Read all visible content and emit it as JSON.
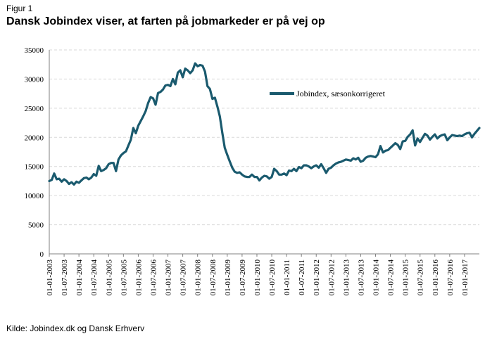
{
  "figure_label": "Figur 1",
  "title": "Dansk Jobindex viser, at farten på jobmarkeder er på vej op",
  "source": "Kilde: Jobindex.dk og Dansk Erhverv",
  "colors": {
    "line": "#1a5a6e",
    "grid": "#d9d9d9",
    "axis": "#808080"
  },
  "chart_data": {
    "type": "line",
    "title": "Dansk Jobindex viser, at farten på jobmarkeder er på vej op",
    "xlabel": "",
    "ylabel": "",
    "ylim": [
      0,
      35000
    ],
    "y_ticks": [
      0,
      5000,
      10000,
      15000,
      20000,
      25000,
      30000,
      35000
    ],
    "y_tick_labels": [
      "0",
      "5000",
      "10000",
      "15000",
      "20000",
      "25000",
      "30000",
      "35000"
    ],
    "x_tick_labels": [
      "01-01-2003",
      "01-07-2003",
      "01-01-2004",
      "01-07-2004",
      "01-01-2005",
      "01-07-2005",
      "01-01-2006",
      "01-07-2006",
      "01-01-2007",
      "01-07-2007",
      "01-01-2008",
      "01-07-2008",
      "01-01-2009",
      "01-07-2009",
      "01-01-2010",
      "01-07-2010",
      "01-01-2011",
      "01-07-2011",
      "01-01-2012",
      "01-07-2012",
      "01-01-2013",
      "01-07-2013",
      "01-01-2014",
      "01-07-2014",
      "01-01-2015",
      "01-07-2015",
      "01-01-2016",
      "01-07-2016",
      "01-01-2017"
    ],
    "grid": "horizontal",
    "legend_position": "top-right",
    "series": [
      {
        "name": "Jobindex, sæsonkorrigeret",
        "points": [
          [
            "2003-01",
            12500
          ],
          [
            "2003-02",
            12700
          ],
          [
            "2003-03",
            13800
          ],
          [
            "2003-04",
            12800
          ],
          [
            "2003-05",
            12900
          ],
          [
            "2003-06",
            12400
          ],
          [
            "2003-07",
            12800
          ],
          [
            "2003-08",
            12500
          ],
          [
            "2003-09",
            12000
          ],
          [
            "2003-10",
            12300
          ],
          [
            "2003-11",
            11900
          ],
          [
            "2003-12",
            12400
          ],
          [
            "2004-01",
            12200
          ],
          [
            "2004-02",
            12600
          ],
          [
            "2004-03",
            13000
          ],
          [
            "2004-04",
            13100
          ],
          [
            "2004-05",
            12800
          ],
          [
            "2004-06",
            13100
          ],
          [
            "2004-07",
            13700
          ],
          [
            "2004-08",
            13400
          ],
          [
            "2004-09",
            15100
          ],
          [
            "2004-10",
            14200
          ],
          [
            "2004-11",
            14400
          ],
          [
            "2004-12",
            14700
          ],
          [
            "2005-01",
            15400
          ],
          [
            "2005-02",
            15600
          ],
          [
            "2005-03",
            15600
          ],
          [
            "2005-04",
            14200
          ],
          [
            "2005-05",
            16200
          ],
          [
            "2005-06",
            16900
          ],
          [
            "2005-07",
            17300
          ],
          [
            "2005-08",
            17600
          ],
          [
            "2005-09",
            18600
          ],
          [
            "2005-10",
            19600
          ],
          [
            "2005-11",
            21600
          ],
          [
            "2005-12",
            20700
          ],
          [
            "2006-01",
            22000
          ],
          [
            "2006-02",
            22800
          ],
          [
            "2006-03",
            23600
          ],
          [
            "2006-04",
            24500
          ],
          [
            "2006-05",
            25900
          ],
          [
            "2006-06",
            26900
          ],
          [
            "2006-07",
            26700
          ],
          [
            "2006-08",
            25600
          ],
          [
            "2006-09",
            27600
          ],
          [
            "2006-10",
            27800
          ],
          [
            "2006-11",
            28200
          ],
          [
            "2006-12",
            28900
          ],
          [
            "2007-01",
            29000
          ],
          [
            "2007-02",
            28800
          ],
          [
            "2007-03",
            30000
          ],
          [
            "2007-04",
            29100
          ],
          [
            "2007-05",
            31100
          ],
          [
            "2007-06",
            31500
          ],
          [
            "2007-07",
            30300
          ],
          [
            "2007-08",
            31800
          ],
          [
            "2007-09",
            31500
          ],
          [
            "2007-10",
            31000
          ],
          [
            "2007-11",
            31500
          ],
          [
            "2007-12",
            32700
          ],
          [
            "2008-01",
            32200
          ],
          [
            "2008-02",
            32400
          ],
          [
            "2008-03",
            32300
          ],
          [
            "2008-04",
            31300
          ],
          [
            "2008-05",
            28800
          ],
          [
            "2008-06",
            28300
          ],
          [
            "2008-07",
            26600
          ],
          [
            "2008-08",
            26800
          ],
          [
            "2008-09",
            25300
          ],
          [
            "2008-10",
            23600
          ],
          [
            "2008-11",
            20800
          ],
          [
            "2008-12",
            18200
          ],
          [
            "2009-01",
            17000
          ],
          [
            "2009-02",
            15900
          ],
          [
            "2009-03",
            14800
          ],
          [
            "2009-04",
            14100
          ],
          [
            "2009-05",
            13900
          ],
          [
            "2009-06",
            14000
          ],
          [
            "2009-07",
            13600
          ],
          [
            "2009-08",
            13300
          ],
          [
            "2009-09",
            13200
          ],
          [
            "2009-10",
            13200
          ],
          [
            "2009-11",
            13600
          ],
          [
            "2009-12",
            13200
          ],
          [
            "2010-01",
            13200
          ],
          [
            "2010-02",
            12600
          ],
          [
            "2010-03",
            13100
          ],
          [
            "2010-04",
            13400
          ],
          [
            "2010-05",
            13300
          ],
          [
            "2010-06",
            12900
          ],
          [
            "2010-07",
            13200
          ],
          [
            "2010-08",
            14600
          ],
          [
            "2010-09",
            14200
          ],
          [
            "2010-10",
            13600
          ],
          [
            "2010-11",
            13600
          ],
          [
            "2010-12",
            13800
          ],
          [
            "2011-01",
            13500
          ],
          [
            "2011-02",
            14300
          ],
          [
            "2011-03",
            14200
          ],
          [
            "2011-04",
            14600
          ],
          [
            "2011-05",
            14200
          ],
          [
            "2011-06",
            14900
          ],
          [
            "2011-07",
            14700
          ],
          [
            "2011-08",
            15200
          ],
          [
            "2011-09",
            15200
          ],
          [
            "2011-10",
            15000
          ],
          [
            "2011-11",
            14700
          ],
          [
            "2011-12",
            15000
          ],
          [
            "2012-01",
            15200
          ],
          [
            "2012-02",
            14800
          ],
          [
            "2012-03",
            15400
          ],
          [
            "2012-04",
            14700
          ],
          [
            "2012-05",
            13900
          ],
          [
            "2012-06",
            14600
          ],
          [
            "2012-07",
            14800
          ],
          [
            "2012-08",
            15200
          ],
          [
            "2012-09",
            15500
          ],
          [
            "2012-10",
            15700
          ],
          [
            "2012-11",
            15800
          ],
          [
            "2012-12",
            16000
          ],
          [
            "2013-01",
            16200
          ],
          [
            "2013-02",
            16100
          ],
          [
            "2013-03",
            16000
          ],
          [
            "2013-04",
            16400
          ],
          [
            "2013-05",
            16200
          ],
          [
            "2013-06",
            16500
          ],
          [
            "2013-07",
            15800
          ],
          [
            "2013-08",
            16000
          ],
          [
            "2013-09",
            16500
          ],
          [
            "2013-10",
            16700
          ],
          [
            "2013-11",
            16800
          ],
          [
            "2013-12",
            16700
          ],
          [
            "2014-01",
            16600
          ],
          [
            "2014-02",
            17100
          ],
          [
            "2014-03",
            18500
          ],
          [
            "2014-04",
            17400
          ],
          [
            "2014-05",
            17700
          ],
          [
            "2014-06",
            17800
          ],
          [
            "2014-07",
            18200
          ],
          [
            "2014-08",
            18600
          ],
          [
            "2014-09",
            19000
          ],
          [
            "2014-10",
            18700
          ],
          [
            "2014-11",
            18000
          ],
          [
            "2014-12",
            19300
          ],
          [
            "2015-01",
            19400
          ],
          [
            "2015-02",
            20100
          ],
          [
            "2015-03",
            20500
          ],
          [
            "2015-04",
            21200
          ],
          [
            "2015-05",
            18600
          ],
          [
            "2015-06",
            19800
          ],
          [
            "2015-07",
            19200
          ],
          [
            "2015-08",
            19900
          ],
          [
            "2015-09",
            20600
          ],
          [
            "2015-10",
            20300
          ],
          [
            "2015-11",
            19600
          ],
          [
            "2015-12",
            20100
          ],
          [
            "2016-01",
            20500
          ],
          [
            "2016-02",
            19800
          ],
          [
            "2016-03",
            20200
          ],
          [
            "2016-04",
            20400
          ],
          [
            "2016-05",
            20500
          ],
          [
            "2016-06",
            19500
          ],
          [
            "2016-07",
            20000
          ],
          [
            "2016-08",
            20400
          ],
          [
            "2016-09",
            20300
          ],
          [
            "2016-10",
            20200
          ],
          [
            "2016-11",
            20300
          ],
          [
            "2016-12",
            20200
          ],
          [
            "2017-01",
            20500
          ],
          [
            "2017-02",
            20700
          ],
          [
            "2017-03",
            20800
          ],
          [
            "2017-04",
            20000
          ],
          [
            "2017-05",
            20600
          ],
          [
            "2017-06",
            21100
          ],
          [
            "2017-07",
            21600
          ]
        ]
      }
    ]
  }
}
